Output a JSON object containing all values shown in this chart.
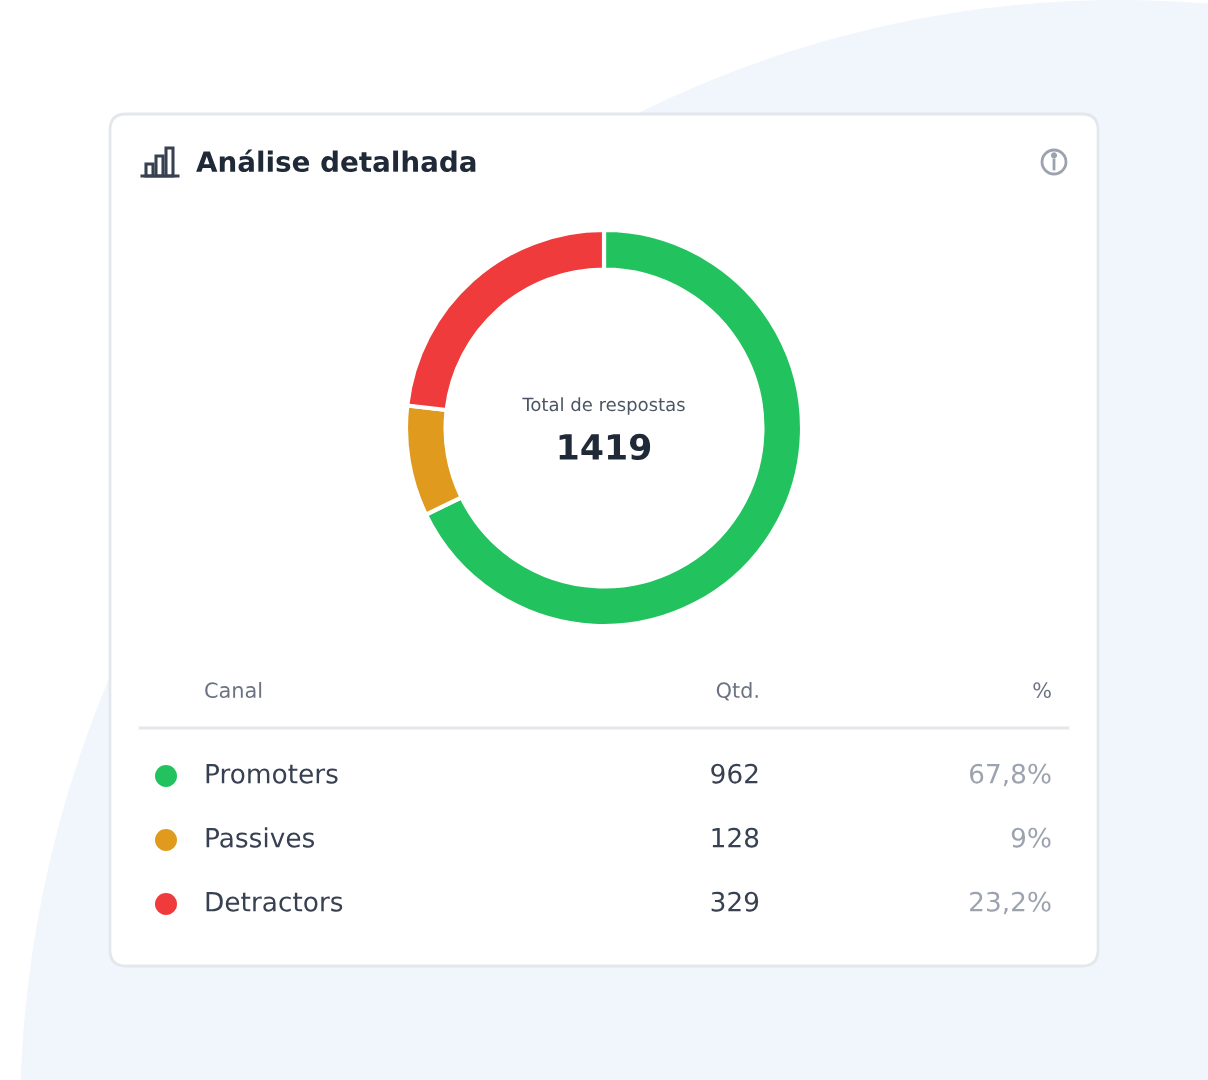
{
  "chart_data": {
    "type": "donut",
    "title": "Análise detalhada",
    "categories": [
      "Promoters",
      "Passives",
      "Detractors"
    ],
    "values": [
      962,
      128,
      329
    ],
    "colors": [
      "#22c35e",
      "#e09a1e",
      "#ef3b3b"
    ],
    "data_labels": true,
    "legend": "bottom",
    "annotations": [
      "Total de respostas",
      "1419",
      "Canal",
      "Qtd.",
      "%",
      "67,8%",
      "9%",
      "23,2%"
    ]
  }
}
